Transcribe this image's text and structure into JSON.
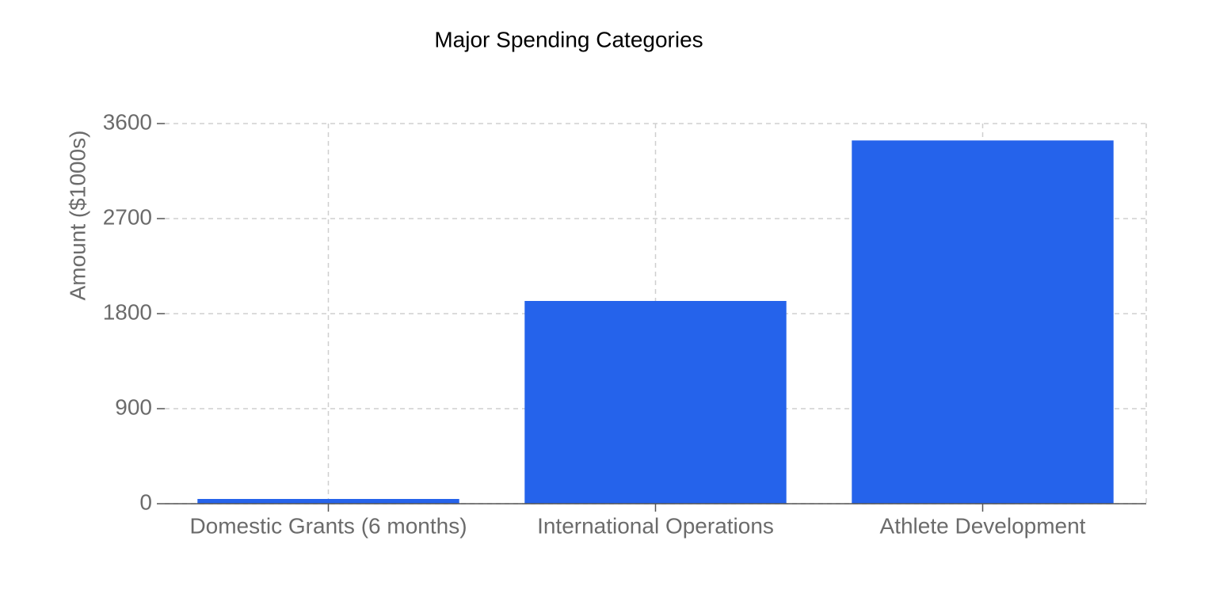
{
  "chart_data": {
    "type": "bar",
    "title": "Major Spending Categories",
    "y_label": "Amount ($1000s)",
    "categories": [
      "Domestic Grants (6 months)",
      "International Operations",
      "Athlete Development"
    ],
    "values": [
      45,
      1920,
      3440
    ],
    "color": "#2563eb",
    "ylim": [
      0,
      3600
    ],
    "yticks": [
      0,
      900,
      1800,
      2700,
      3600
    ],
    "grid": true
  }
}
